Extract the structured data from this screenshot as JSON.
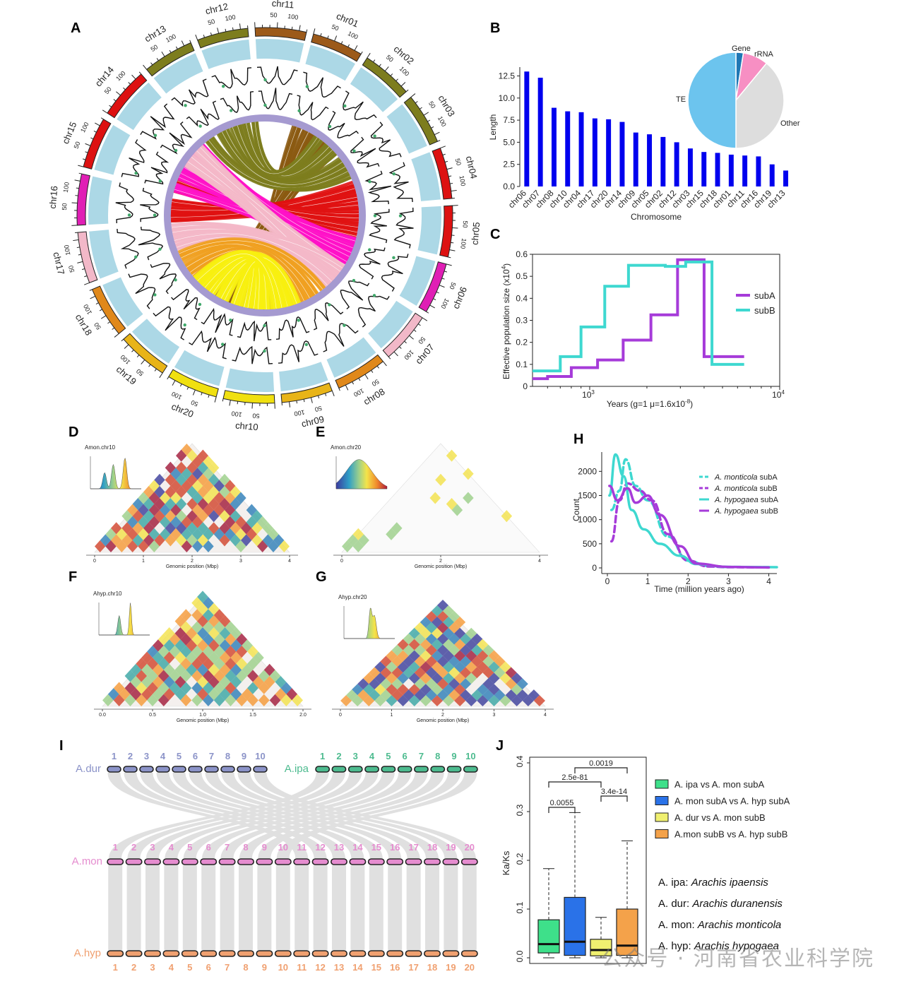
{
  "panels": {
    "A": "A",
    "B": "B",
    "C": "C",
    "D": "D",
    "E": "E",
    "F": "F",
    "G": "G",
    "H": "H",
    "I": "I",
    "J": "J"
  },
  "circos": {
    "chromosomes": [
      {
        "name": "chr01",
        "color": "#9c5a1a"
      },
      {
        "name": "chr02",
        "color": "#7d7d1e"
      },
      {
        "name": "chr03",
        "color": "#7d7d1e"
      },
      {
        "name": "chr04",
        "color": "#dd1111"
      },
      {
        "name": "chr05",
        "color": "#dd1111"
      },
      {
        "name": "chr06",
        "color": "#e01fb5"
      },
      {
        "name": "chr07",
        "color": "#f2b8c8"
      },
      {
        "name": "chr08",
        "color": "#e0881a"
      },
      {
        "name": "chr09",
        "color": "#e8b418"
      },
      {
        "name": "chr10",
        "color": "#f0e010"
      },
      {
        "name": "chr20",
        "color": "#f0e010"
      },
      {
        "name": "chr19",
        "color": "#e8b418"
      },
      {
        "name": "chr18",
        "color": "#e0881a"
      },
      {
        "name": "chr17",
        "color": "#f2b8c8"
      },
      {
        "name": "chr16",
        "color": "#e01fb5"
      },
      {
        "name": "chr15",
        "color": "#dd1111"
      },
      {
        "name": "chr14",
        "color": "#dd1111"
      },
      {
        "name": "chr13",
        "color": "#7d7d1e"
      },
      {
        "name": "chr12",
        "color": "#7d7d1e"
      },
      {
        "name": "chr11",
        "color": "#9c5a1a"
      }
    ],
    "tick_labels": [
      "50",
      "100",
      "150"
    ]
  },
  "chart_data": [
    {
      "panel": "B",
      "type": "bar",
      "categories": [
        "chr06",
        "chr07",
        "chr08",
        "chr10",
        "chr04",
        "chr17",
        "chr20",
        "chr14",
        "chr09",
        "chr05",
        "chr02",
        "chr12",
        "chr03",
        "chr15",
        "chr18",
        "chr01",
        "chr11",
        "chr16",
        "chr19",
        "chr13"
      ],
      "values": [
        13.0,
        12.3,
        8.9,
        8.5,
        8.4,
        7.7,
        7.6,
        7.3,
        6.1,
        5.9,
        5.6,
        5.0,
        4.3,
        3.9,
        3.8,
        3.6,
        3.5,
        3.4,
        2.5,
        1.8
      ],
      "xlabel": "Chromosome",
      "ylabel": "Length",
      "ylim": [
        0,
        13.5
      ],
      "yticks": [
        "0.0",
        "2.5",
        "5.0",
        "7.5",
        "10.0",
        "12.5"
      ],
      "color": "#0000ee"
    },
    {
      "panel": "B-inset",
      "type": "pie",
      "labels": [
        "Gene",
        "rRNA",
        "Other",
        "TE"
      ],
      "values": [
        2.5,
        8.5,
        39,
        50
      ],
      "colors": [
        "#1f77b4",
        "#f78fc3",
        "#dddddd",
        "#6cc4ee"
      ]
    },
    {
      "panel": "C",
      "type": "line",
      "xlabel": "Years (g=1 μ=1.6x10",
      "xlabel_sup": "-8",
      "xlabel_end": ")",
      "ylabel": "Effective population size (x10",
      "ylabel_sup": "4",
      "ylabel_end": ")",
      "xscale": "log",
      "xlim": [
        500,
        10000
      ],
      "ylim": [
        0,
        0.6
      ],
      "yticks": [
        "0",
        "0.1",
        "0.2",
        "0.3",
        "0.4",
        "0.5",
        "0.6"
      ],
      "xtick_base": "10",
      "xtick_exps": [
        "3",
        "4"
      ],
      "series": [
        {
          "name": "subA",
          "color": "#a63bd9",
          "steps": [
            [
              500,
              0.035
            ],
            [
              600,
              0.045
            ],
            [
              800,
              0.085
            ],
            [
              1100,
              0.12
            ],
            [
              1500,
              0.21
            ],
            [
              2100,
              0.325
            ],
            [
              2900,
              0.575
            ],
            [
              4000,
              0.135
            ],
            [
              6500,
              0.135
            ]
          ]
        },
        {
          "name": "subB",
          "color": "#3ed8d0",
          "steps": [
            [
              500,
              0.07
            ],
            [
              700,
              0.135
            ],
            [
              900,
              0.27
            ],
            [
              1200,
              0.455
            ],
            [
              1600,
              0.55
            ],
            [
              2500,
              0.545
            ],
            [
              3200,
              0.565
            ],
            [
              4400,
              0.1
            ],
            [
              6500,
              0.1
            ]
          ]
        }
      ]
    },
    {
      "panel": "H",
      "type": "line",
      "xlabel": "Time (million years ago)",
      "ylabel": "Count",
      "xlim": [
        0,
        4.2
      ],
      "ylim": [
        0,
        2400
      ],
      "xticks": [
        "0",
        "1",
        "2",
        "3",
        "4"
      ],
      "yticks": [
        "0",
        "500",
        "1000",
        "1500",
        "2000"
      ],
      "series": [
        {
          "name_species": "A. monticola",
          "name_sub": "subA",
          "color": "#3ed8d0",
          "dash": true,
          "points": [
            [
              0.1,
              1200
            ],
            [
              0.3,
              1600
            ],
            [
              0.45,
              2250
            ],
            [
              0.7,
              1700
            ],
            [
              1.0,
              1400
            ],
            [
              1.5,
              650
            ],
            [
              2.0,
              150
            ],
            [
              2.5,
              40
            ],
            [
              3.0,
              20
            ],
            [
              4.0,
              15
            ]
          ]
        },
        {
          "name_species": "A. monticola",
          "name_sub": "subB",
          "color": "#a63bd9",
          "dash": true,
          "points": [
            [
              0.1,
              550
            ],
            [
              0.3,
              1400
            ],
            [
              0.5,
              1750
            ],
            [
              0.8,
              1600
            ],
            [
              1.1,
              1400
            ],
            [
              1.5,
              700
            ],
            [
              2.0,
              150
            ],
            [
              2.5,
              30
            ],
            [
              3.0,
              15
            ],
            [
              4.0,
              10
            ]
          ]
        },
        {
          "name_species": "A. hypogaea",
          "name_sub": "subA",
          "color": "#3ed8d0",
          "dash": false,
          "points": [
            [
              0.05,
              1500
            ],
            [
              0.2,
              2350
            ],
            [
              0.4,
              1900
            ],
            [
              0.6,
              1200
            ],
            [
              0.9,
              800
            ],
            [
              1.3,
              500
            ],
            [
              1.8,
              250
            ],
            [
              2.2,
              80
            ],
            [
              3.0,
              20
            ],
            [
              4.2,
              15
            ]
          ]
        },
        {
          "name_species": "A. hypogaea",
          "name_sub": "subB",
          "color": "#a63bd9",
          "dash": false,
          "points": [
            [
              0.05,
              1700
            ],
            [
              0.25,
              1400
            ],
            [
              0.5,
              1650
            ],
            [
              0.7,
              1350
            ],
            [
              1.0,
              1500
            ],
            [
              1.3,
              1100
            ],
            [
              1.8,
              450
            ],
            [
              2.2,
              90
            ],
            [
              3.0,
              20
            ],
            [
              4.0,
              10
            ]
          ]
        }
      ]
    },
    {
      "panel": "J",
      "type": "box",
      "ylabel": "Ka/Ks",
      "ylim": [
        0,
        0.4
      ],
      "yticks": [
        "0.0",
        "0.1",
        "0.2",
        "0.3",
        "0.4"
      ],
      "boxes": [
        {
          "label": "A. ipa vs A. mon subA",
          "color": "#3ee08a",
          "q1": 0.01,
          "median": 0.028,
          "q3": 0.078,
          "whisker_low": 0.0,
          "whisker_high": 0.183
        },
        {
          "label": "A. mon subA vs A. hyp subA",
          "color": "#2a72e8",
          "q1": 0.005,
          "median": 0.033,
          "q3": 0.124,
          "whisker_low": 0.0,
          "whisker_high": 0.298
        },
        {
          "label": "A. dur vs A. mon subB",
          "color": "#f0f070",
          "q1": 0.004,
          "median": 0.016,
          "q3": 0.038,
          "whisker_low": 0.0,
          "whisker_high": 0.083
        },
        {
          "label": "A.mon subB vs A. hyp subB",
          "color": "#f4a24a",
          "q1": 0.005,
          "median": 0.025,
          "q3": 0.1,
          "whisker_low": 0.0,
          "whisker_high": 0.24
        }
      ],
      "significance": [
        "0.0019",
        "2.5e-81",
        "3.4e-14",
        "0.0055"
      ],
      "species_key": [
        {
          "abbr": "A. ipa: ",
          "full": "Arachis ipaensis"
        },
        {
          "abbr": "A. dur: ",
          "full": "Arachis duranensis"
        },
        {
          "abbr": "A. mon: ",
          "full": "Arachis monticola"
        },
        {
          "abbr": "A. hyp: ",
          "full": "Arachis hypogaea"
        }
      ]
    }
  ],
  "pie_labels": {
    "gene": "Gene",
    "rrna": "rRNA",
    "other": "Other",
    "te": "TE"
  },
  "heatmaps": {
    "D": {
      "title": "Amon.chr10",
      "xlabel": "Genomic position (Mbp)",
      "ticks": [
        "0",
        "1",
        "2",
        "3",
        "4"
      ]
    },
    "E": {
      "title": "Amon.chr20",
      "xlabel": "Genomic position (Mbp)",
      "ticks": [
        "0",
        "2",
        "4"
      ]
    },
    "F": {
      "title": "Ahyp.chr10",
      "xlabel": "Genomic position (Mbp)",
      "ticks": [
        "0.0",
        "0.5",
        "1.0",
        "1.5",
        "2.0"
      ]
    },
    "G": {
      "title": "Ahyp.chr20",
      "xlabel": "Genomic position (Mbp)",
      "ticks": [
        "0",
        "1",
        "2",
        "3",
        "4"
      ]
    }
  },
  "synteny": {
    "rows": [
      {
        "name": "A.dur",
        "color": "#8b93c8",
        "labels": [
          "1",
          "2",
          "3",
          "4",
          "5",
          "6",
          "7",
          "8",
          "9",
          "10"
        ]
      },
      {
        "name": "A.ipa",
        "color": "#4dbb8f",
        "labels": [
          "1",
          "2",
          "3",
          "4",
          "5",
          "6",
          "7",
          "8",
          "9",
          "10"
        ]
      },
      {
        "name": "A.mon",
        "color": "#e58ccf",
        "labels": [
          "1",
          "2",
          "3",
          "4",
          "5",
          "6",
          "7",
          "8",
          "9",
          "10",
          "11",
          "12",
          "13",
          "14",
          "15",
          "16",
          "17",
          "18",
          "19",
          "20"
        ]
      },
      {
        "name": "A.hyp",
        "color": "#f0a070",
        "labels": [
          "1",
          "2",
          "3",
          "4",
          "5",
          "6",
          "7",
          "8",
          "9",
          "10",
          "11",
          "12",
          "13",
          "14",
          "15",
          "16",
          "17",
          "18",
          "19",
          "20"
        ]
      }
    ]
  },
  "watermark": "公众号 · 河南省农业科学院"
}
